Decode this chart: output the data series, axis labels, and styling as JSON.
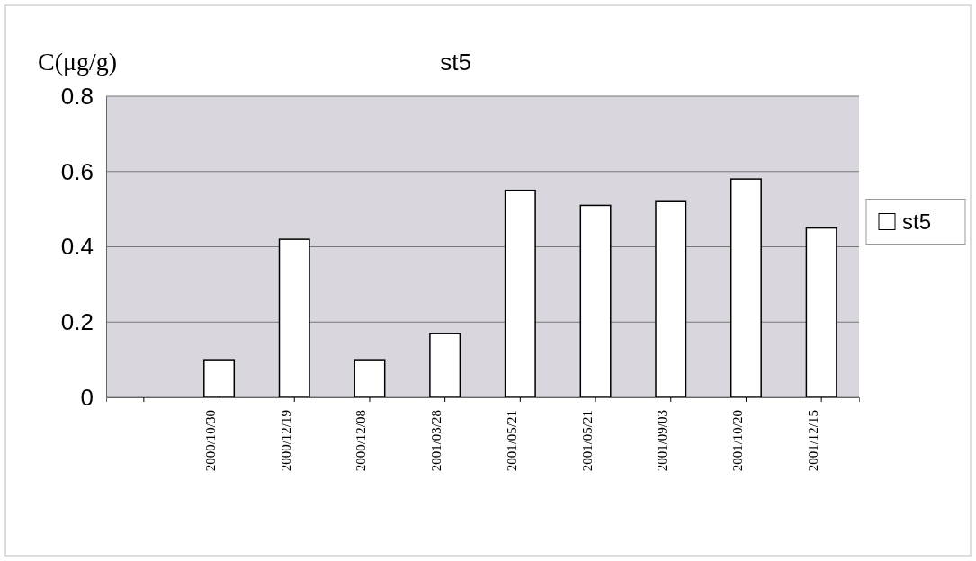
{
  "chart_data": {
    "type": "bar",
    "title": "st5",
    "ylabel": "C(μg/g)",
    "categories": [
      null,
      "2000/10/30",
      "2000/12/19",
      "2000/12/08",
      "2001/03/28",
      "2001/05/21",
      "2001/05/21",
      "2001/09/03",
      "2001/10/20",
      "2001/12/15"
    ],
    "series": [
      {
        "name": "st5",
        "color": "#ffffff",
        "values": [
          null,
          0.1,
          0.42,
          0.1,
          0.17,
          0.55,
          0.51,
          0.52,
          0.58,
          0.45
        ]
      }
    ],
    "ylim": [
      0,
      0.8
    ],
    "yticks": [
      {
        "value": 0,
        "label": "0"
      },
      0.2,
      0.4,
      0.6,
      0.8
    ],
    "grid": "y",
    "legend": "right"
  }
}
